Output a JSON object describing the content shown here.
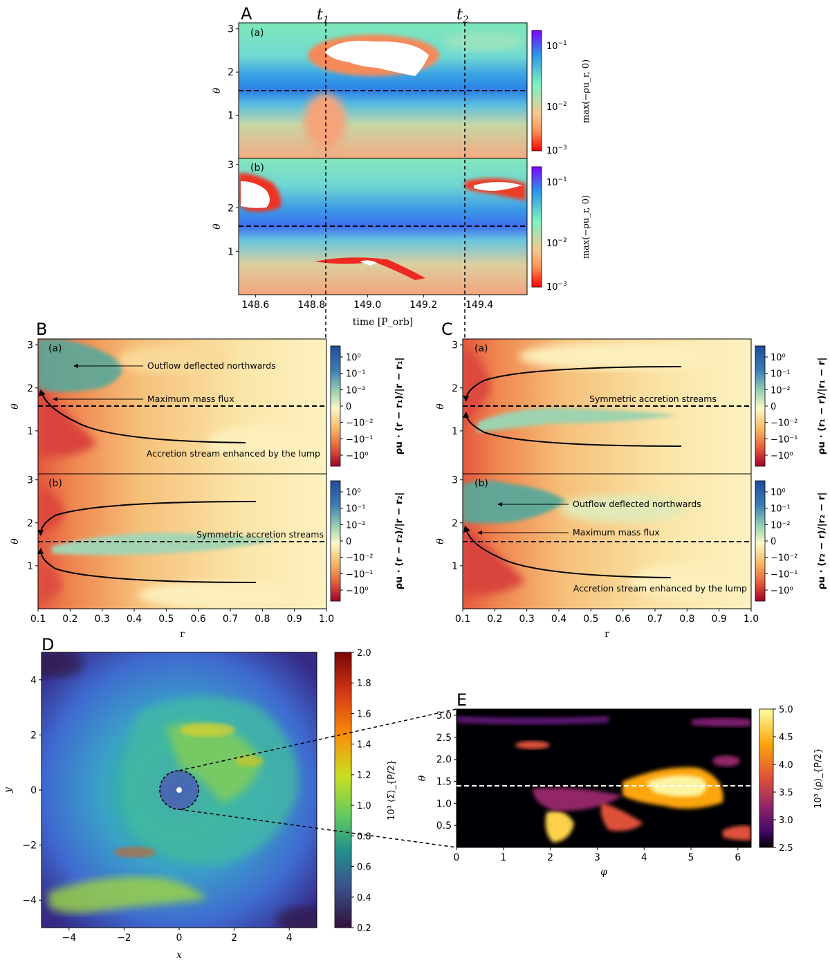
{
  "panel_letters": {
    "A": "A",
    "B": "B",
    "C": "C",
    "D": "D",
    "E": "E"
  },
  "sub_labels": {
    "a": "(a)",
    "b": "(b)"
  },
  "time_markers": {
    "t1": "t",
    "t1_sub": "1",
    "t2": "t",
    "t2_sub": "2",
    "t1_value": 148.84,
    "t2_value": 149.34
  },
  "colors": {
    "rainbow": [
      "#ff0000",
      "#f88a4f",
      "#f6c78d",
      "#7ef2c0",
      "#2d94ea",
      "#8000ff"
    ],
    "diverging": [
      "#a0002a",
      "#e55a3a",
      "#f5b35e",
      "#fcf8c6",
      "#9ad3b3",
      "#3a7cb6",
      "#1f4d9a"
    ],
    "viridis": [
      "#440154",
      "#3b528b",
      "#21908d",
      "#5dc963",
      "#fde725",
      "#f98e09",
      "#b12a1c",
      "#7a0403"
    ],
    "inferno": [
      "#000004",
      "#420a68",
      "#932667",
      "#dd513a",
      "#fca50a",
      "#fcffa4"
    ]
  },
  "chart_data": [
    {
      "id": "A-a",
      "type": "heatmap",
      "xlabel": "",
      "ylabel": "θ",
      "xlim": [
        148.54,
        149.57
      ],
      "ylim": [
        3.14,
        0
      ],
      "yticks": [
        "1",
        "2",
        "3"
      ],
      "ytick_values": [
        1,
        2,
        3
      ],
      "colorbar": {
        "label": "max(−ρu_r, 0)",
        "ticks": [
          "10",
          "10",
          "10"
        ],
        "tick_exponents": [
          "−1",
          "−2",
          "−3"
        ],
        "range": [
          0.001,
          0.5
        ],
        "scale": "log"
      },
      "dashed_hline": 1.5708,
      "features": [
        {
          "kind": "white-region",
          "x": 149.0,
          "y": 0.85
        }
      ]
    },
    {
      "id": "A-b",
      "type": "heatmap",
      "xlabel": "time [P_orb]",
      "ylabel": "θ",
      "xlim": [
        148.54,
        149.57
      ],
      "ylim": [
        3.14,
        0
      ],
      "xticks": [
        "148.6",
        "148.8",
        "149.0",
        "149.2",
        "149.4"
      ],
      "xtick_values": [
        148.6,
        148.8,
        149.0,
        149.2,
        149.4
      ],
      "yticks": [
        "1",
        "2",
        "3"
      ],
      "ytick_values": [
        1,
        2,
        3
      ],
      "colorbar": {
        "label": "max(−ρu_r, 0)",
        "ticks": [
          "10",
          "10",
          "10"
        ],
        "tick_exponents": [
          "−1",
          "−2",
          "−3"
        ],
        "range": [
          0.001,
          0.5
        ],
        "scale": "log"
      },
      "dashed_hline": 1.5708
    },
    {
      "id": "B-a",
      "type": "heatmap",
      "xlabel": "",
      "ylabel": "θ",
      "xlim": [
        0.1,
        1.0
      ],
      "ylim": [
        3.14,
        0
      ],
      "yticks": [
        "1",
        "2",
        "3"
      ],
      "ytick_values": [
        1,
        2,
        3
      ],
      "colorbar": {
        "label": "ρu · (r − r₁)/|r − r₁|",
        "ticks": [
          "10⁰",
          "10⁻¹",
          "10⁻²",
          "0",
          "−10⁻²",
          "−10⁻¹",
          "−10⁰"
        ],
        "scale": "symlog"
      },
      "dashed_hline": 1.5708,
      "annotations": [
        {
          "text": "Outflow deflected northwards",
          "x": 0.2,
          "y": 0.6
        },
        {
          "text": "Maximum mass flux",
          "x": 0.15,
          "y": 1.35
        },
        {
          "text": "Accretion stream enhanced by the lump",
          "x": 0.55,
          "y": 2.7
        }
      ]
    },
    {
      "id": "B-b",
      "type": "heatmap",
      "xlabel": "r",
      "ylabel": "θ",
      "xlim": [
        0.1,
        1.0
      ],
      "ylim": [
        3.14,
        0
      ],
      "xticks": [
        "0.1",
        "0.2",
        "0.3",
        "0.4",
        "0.5",
        "0.6",
        "0.7",
        "0.8",
        "0.9",
        "1.0"
      ],
      "yticks": [
        "1",
        "2",
        "3"
      ],
      "ytick_values": [
        1,
        2,
        3
      ],
      "colorbar": {
        "label": "ρu · (r − r₂)/|r − r₂|",
        "ticks": [
          "10⁰",
          "10⁻¹",
          "10⁻²",
          "0",
          "−10⁻²",
          "−10⁻¹",
          "−10⁰"
        ],
        "scale": "symlog"
      },
      "dashed_hline": 1.5708,
      "annotations": [
        {
          "text": "Symmetric accretion streams",
          "x": 0.65,
          "y": 1.45
        }
      ]
    },
    {
      "id": "C-a",
      "type": "heatmap",
      "xlabel": "",
      "ylabel": "θ",
      "xlim": [
        0.1,
        1.0
      ],
      "ylim": [
        3.14,
        0
      ],
      "yticks": [
        "1",
        "2",
        "3"
      ],
      "ytick_values": [
        1,
        2,
        3
      ],
      "colorbar": {
        "label": "ρu · (r₁ − r)/|r₁ − r|",
        "ticks": [
          "10⁰",
          "10⁻¹",
          "10⁻²",
          "0",
          "−10⁻²",
          "−10⁻¹",
          "−10⁰"
        ],
        "scale": "symlog"
      },
      "dashed_hline": 1.5708,
      "annotations": [
        {
          "text": "Symmetric accretion streams",
          "x": 0.65,
          "y": 1.45
        }
      ]
    },
    {
      "id": "C-b",
      "type": "heatmap",
      "xlabel": "r",
      "ylabel": "θ",
      "xlim": [
        0.1,
        1.0
      ],
      "ylim": [
        3.14,
        0
      ],
      "xticks": [
        "0.1",
        "0.2",
        "0.3",
        "0.4",
        "0.5",
        "0.6",
        "0.7",
        "0.8",
        "0.9",
        "1.0"
      ],
      "yticks": [
        "1",
        "2",
        "3"
      ],
      "ytick_values": [
        1,
        2,
        3
      ],
      "colorbar": {
        "label": "ρu · (r₂ − r)/|r₂ − r|",
        "ticks": [
          "10⁰",
          "10⁻¹",
          "10⁻²",
          "0",
          "−10⁻²",
          "−10⁻¹",
          "−10⁰"
        ],
        "scale": "symlog"
      },
      "dashed_hline": 1.5708,
      "annotations": [
        {
          "text": "Outflow deflected northwards",
          "x": 0.2,
          "y": 0.6
        },
        {
          "text": "Maximum mass flux",
          "x": 0.15,
          "y": 1.35
        },
        {
          "text": "Accretion stream enhanced by the lump",
          "x": 0.55,
          "y": 2.7
        }
      ]
    },
    {
      "id": "D",
      "type": "heatmap",
      "xlabel": "x",
      "ylabel": "y",
      "xlim": [
        -5,
        5
      ],
      "ylim": [
        -5,
        5
      ],
      "xticks": [
        "−4",
        "−2",
        "0",
        "2",
        "4"
      ],
      "xtick_values": [
        -4,
        -2,
        0,
        2,
        4
      ],
      "yticks": [
        "4",
        "2",
        "0",
        "−2",
        "−4"
      ],
      "ytick_values": [
        4,
        2,
        0,
        -2,
        -4
      ],
      "colorbar": {
        "label": "10³ ⟨Σ⟩_{P/2}",
        "ticks": [
          "2.0",
          "1.8",
          "1.6",
          "1.4",
          "1.2",
          "1.0",
          "0.8",
          "0.6",
          "0.4",
          "0.2"
        ],
        "range": [
          0.2,
          2.0
        ]
      },
      "features": [
        {
          "kind": "dashed-circle",
          "cx": 0,
          "cy": 0,
          "r": 0.7
        },
        {
          "kind": "white-dot",
          "cx": 0,
          "cy": 0
        }
      ]
    },
    {
      "id": "E",
      "type": "heatmap",
      "xlabel": "φ",
      "ylabel": "θ",
      "xlim": [
        0,
        6.283
      ],
      "ylim": [
        3.14,
        0
      ],
      "xticks": [
        "0",
        "1",
        "2",
        "3",
        "4",
        "5",
        "6"
      ],
      "xtick_values": [
        0,
        1,
        2,
        3,
        4,
        5,
        6
      ],
      "yticks": [
        "0.5",
        "1.0",
        "1.5",
        "2.0",
        "2.5",
        "3.0"
      ],
      "ytick_values": [
        0.5,
        1.0,
        1.5,
        2.0,
        2.5,
        3.0
      ],
      "colorbar": {
        "label": "10³ ⟨ρ⟩_{P/2}",
        "ticks": [
          "5.0",
          "4.5",
          "4.0",
          "3.5",
          "3.0",
          "2.5"
        ],
        "range": [
          2.5,
          5.0
        ]
      },
      "dashed_hline": 1.5708
    }
  ]
}
